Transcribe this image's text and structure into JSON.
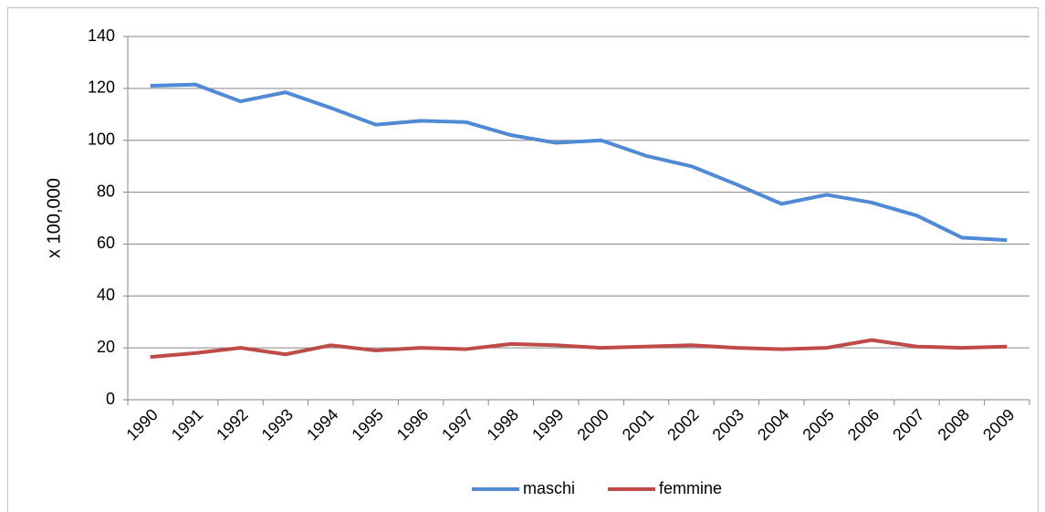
{
  "chart_data": {
    "type": "line",
    "y_label": "x 100,000",
    "categories": [
      "1990",
      "1991",
      "1992",
      "1993",
      "1994",
      "1995",
      "1996",
      "1997",
      "1998",
      "1999",
      "2000",
      "2001",
      "2002",
      "2003",
      "2004",
      "2005",
      "2006",
      "2007",
      "2008",
      "2009"
    ],
    "series": [
      {
        "name": "maschi",
        "color": "#5089d4",
        "values": [
          121,
          121.5,
          115,
          118.5,
          112.5,
          106,
          107.5,
          107,
          102,
          99,
          100,
          94,
          90,
          83,
          75.5,
          79,
          76,
          71,
          62.5,
          61.5
        ]
      },
      {
        "name": "femmine",
        "color": "#be4b48",
        "values": [
          16.5,
          18,
          20,
          17.5,
          21,
          19,
          20,
          19.5,
          21.5,
          21,
          20,
          20.5,
          21,
          20,
          19.5,
          20,
          23,
          20.5,
          20,
          20.5
        ]
      }
    ],
    "ylim": [
      0,
      140
    ],
    "yticks": [
      0,
      20,
      40,
      60,
      80,
      100,
      120,
      140
    ],
    "grid": true,
    "legend": "bottom"
  }
}
